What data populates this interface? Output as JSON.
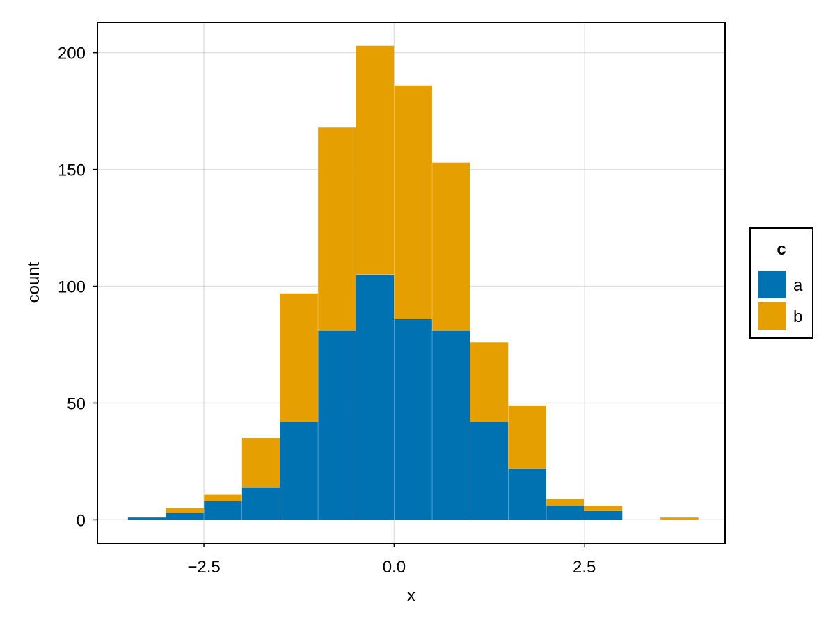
{
  "chart_data": {
    "type": "bar",
    "subtype": "stacked-histogram",
    "title": "",
    "xlabel": "x",
    "ylabel": "count",
    "xlim": [
      -3.9,
      4.35
    ],
    "ylim": [
      -10,
      213
    ],
    "bin_width": 0.5,
    "bin_edges": [
      -3.5,
      -3.0,
      -2.5,
      -2.0,
      -1.5,
      -1.0,
      -0.5,
      0.0,
      0.5,
      1.0,
      1.5,
      2.0,
      2.5,
      3.0,
      3.5,
      4.0
    ],
    "x_ticks": [
      {
        "value": -2.5,
        "label": "−2.5"
      },
      {
        "value": 0.0,
        "label": "0.0"
      },
      {
        "value": 2.5,
        "label": "2.5"
      }
    ],
    "y_ticks": [
      {
        "value": 0,
        "label": "0"
      },
      {
        "value": 50,
        "label": "50"
      },
      {
        "value": 100,
        "label": "100"
      },
      {
        "value": 150,
        "label": "150"
      },
      {
        "value": 200,
        "label": "200"
      }
    ],
    "grid": true,
    "legend": {
      "title": "c",
      "position": "right"
    },
    "series": [
      {
        "name": "a",
        "color": "#0072b2",
        "values": [
          1,
          3,
          8,
          14,
          42,
          81,
          105,
          86,
          81,
          42,
          22,
          6,
          4,
          0,
          0
        ]
      },
      {
        "name": "b",
        "color": "#e69f00",
        "values": [
          0,
          2,
          3,
          21,
          55,
          87,
          98,
          100,
          72,
          34,
          27,
          3,
          2,
          0,
          1
        ]
      }
    ]
  }
}
